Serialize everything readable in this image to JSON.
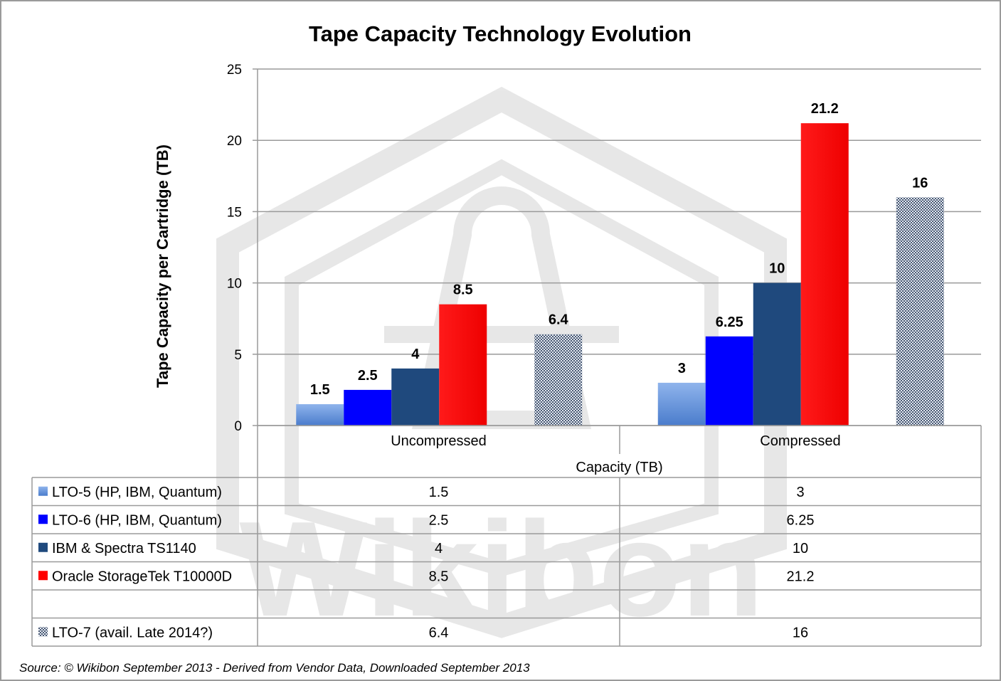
{
  "chart_data": {
    "type": "bar",
    "title": "Tape Capacity Technology Evolution",
    "ylabel": "Tape Capacity per Cartridge (TB)",
    "xlabel": "Capacity (TB)",
    "ylim": [
      0,
      25
    ],
    "yticks": [
      0,
      5,
      10,
      15,
      20,
      25
    ],
    "grid": true,
    "categories": [
      "Uncompressed",
      "Compressed"
    ],
    "series": [
      {
        "name": "LTO-5 (HP, IBM, Quantum)",
        "values": [
          1.5,
          3
        ],
        "labels": [
          "1.5",
          "3"
        ],
        "color": "#6f9be0",
        "pattern": "gradient"
      },
      {
        "name": "LTO-6 (HP, IBM, Quantum)",
        "values": [
          2.5,
          6.25
        ],
        "labels": [
          "2.5",
          "6.25"
        ],
        "color": "#0000ff",
        "pattern": "solid"
      },
      {
        "name": "IBM & Spectra TS1140",
        "values": [
          4,
          10
        ],
        "labels": [
          "4",
          "10"
        ],
        "color": "#1f497d",
        "pattern": "solid"
      },
      {
        "name": "Oracle StorageTek T10000D",
        "values": [
          8.5,
          21.2
        ],
        "labels": [
          "8.5",
          "21.2"
        ],
        "color": "#ff0000",
        "pattern": "solid"
      },
      {
        "name": "",
        "values": [
          null,
          null
        ],
        "labels": [
          "",
          ""
        ],
        "color": "#ffffff",
        "pattern": "none"
      },
      {
        "name": "LTO-7 (avail. Late 2014?)",
        "values": [
          6.4,
          16
        ],
        "labels": [
          "6.4",
          "16"
        ],
        "color": "#5a6a82",
        "pattern": "dots"
      }
    ]
  },
  "source": "Source: © Wikibon September 2013 - Derived from Vendor Data, Downloaded September 2013",
  "watermark": "Wikibon"
}
